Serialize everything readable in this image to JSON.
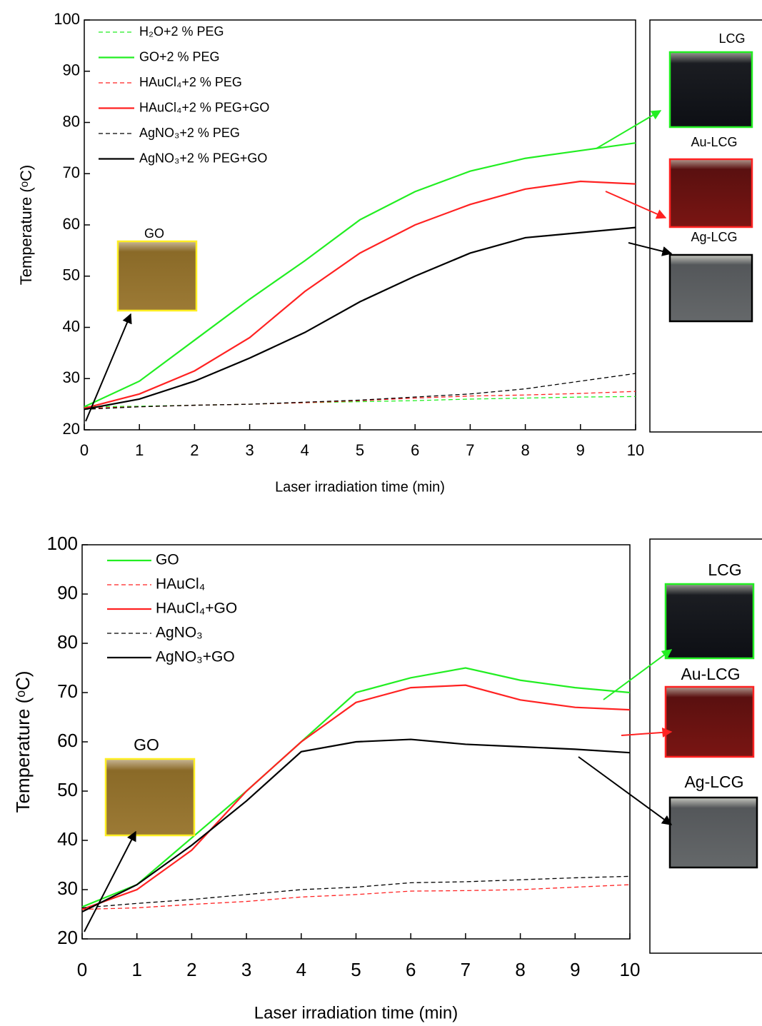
{
  "chart_data": [
    {
      "type": "line",
      "x_label": "Laser irradiation time (min)",
      "y_label": "Temperature (ᵒC)",
      "x": [
        0,
        1,
        2,
        3,
        4,
        5,
        6,
        7,
        8,
        9,
        10
      ],
      "xlim": [
        0,
        10
      ],
      "xticks": [
        0,
        1,
        2,
        3,
        4,
        5,
        6,
        7,
        8,
        9,
        10
      ],
      "ylim": [
        20,
        100
      ],
      "yticks": [
        20,
        30,
        40,
        50,
        60,
        70,
        80,
        90,
        100
      ],
      "legend": "upper left",
      "series": [
        {
          "name": "H₂O+2 % PEG",
          "color": "#22ee22",
          "dashed": true,
          "values": [
            24.5,
            24.6,
            24.8,
            25,
            25.3,
            25.5,
            25.7,
            26,
            26.2,
            26.4,
            26.5
          ]
        },
        {
          "name": "GO+2 % PEG",
          "color": "#22ee22",
          "dashed": false,
          "values": [
            24.5,
            29.5,
            37.5,
            45.5,
            53,
            61,
            66.5,
            70.5,
            73,
            74.5,
            76
          ]
        },
        {
          "name": "HAuCl₄+2 % PEG",
          "color": "#ff2222",
          "dashed": true,
          "values": [
            24.2,
            24.5,
            24.8,
            25,
            25.3,
            25.7,
            26.2,
            26.6,
            26.8,
            27.1,
            27.5
          ]
        },
        {
          "name": "HAuCl₄+2 % PEG+GO",
          "color": "#ff2222",
          "dashed": false,
          "values": [
            24.2,
            27,
            31.5,
            38,
            47,
            54.5,
            60,
            64,
            67,
            68.5,
            68
          ]
        },
        {
          "name": "AgNO₃+2 % PEG",
          "color": "#000000",
          "dashed": true,
          "values": [
            24,
            24.5,
            24.8,
            25,
            25.4,
            25.8,
            26.4,
            27,
            28,
            29.5,
            31
          ]
        },
        {
          "name": "AgNO₃+2 % PEG+GO",
          "color": "#000000",
          "dashed": false,
          "values": [
            24,
            26,
            29.5,
            34,
            39,
            45,
            50,
            54.5,
            57.5,
            58.5,
            59.5
          ]
        }
      ],
      "annotations": [
        "LCG",
        "Au-LCG",
        "Ag-LCG",
        "GO"
      ]
    },
    {
      "type": "line",
      "x_label": "Laser irradiation time (min)",
      "y_label": "Temperature (ᵒC)",
      "x": [
        0,
        1,
        2,
        3,
        4,
        5,
        6,
        7,
        8,
        9,
        10
      ],
      "xlim": [
        0,
        10
      ],
      "xticks": [
        0,
        1,
        2,
        3,
        4,
        5,
        6,
        7,
        8,
        9,
        10
      ],
      "ylim": [
        20,
        100
      ],
      "yticks": [
        20,
        30,
        40,
        50,
        60,
        70,
        80,
        90,
        100
      ],
      "legend": "upper left",
      "series": [
        {
          "name": "GO",
          "color": "#22ee22",
          "dashed": false,
          "values": [
            26.5,
            31,
            40.5,
            50,
            60,
            70,
            73,
            75,
            72.5,
            71,
            70
          ]
        },
        {
          "name": "HAuCl₄",
          "color": "#ff2222",
          "dashed": true,
          "values": [
            26,
            26.3,
            27,
            27.6,
            28.5,
            29,
            29.7,
            29.8,
            30,
            30.5,
            31
          ]
        },
        {
          "name": "HAuCl₄+GO",
          "color": "#ff2222",
          "dashed": false,
          "values": [
            26,
            30,
            38,
            50,
            60,
            68,
            71,
            71.5,
            68.5,
            67,
            66.5
          ]
        },
        {
          "name": "AgNO₃",
          "color": "#000000",
          "dashed": true,
          "values": [
            26.3,
            27.2,
            28,
            29,
            30,
            30.5,
            31.4,
            31.6,
            32,
            32.4,
            32.7
          ]
        },
        {
          "name": "AgNO₃+GO",
          "color": "#000000",
          "dashed": false,
          "values": [
            25.5,
            31,
            39,
            48,
            58,
            60,
            60.5,
            59.5,
            59,
            58.5,
            57.8
          ]
        }
      ],
      "annotations": [
        "LCG",
        "Au-LCG",
        "Ag-LCG",
        "GO"
      ]
    }
  ]
}
